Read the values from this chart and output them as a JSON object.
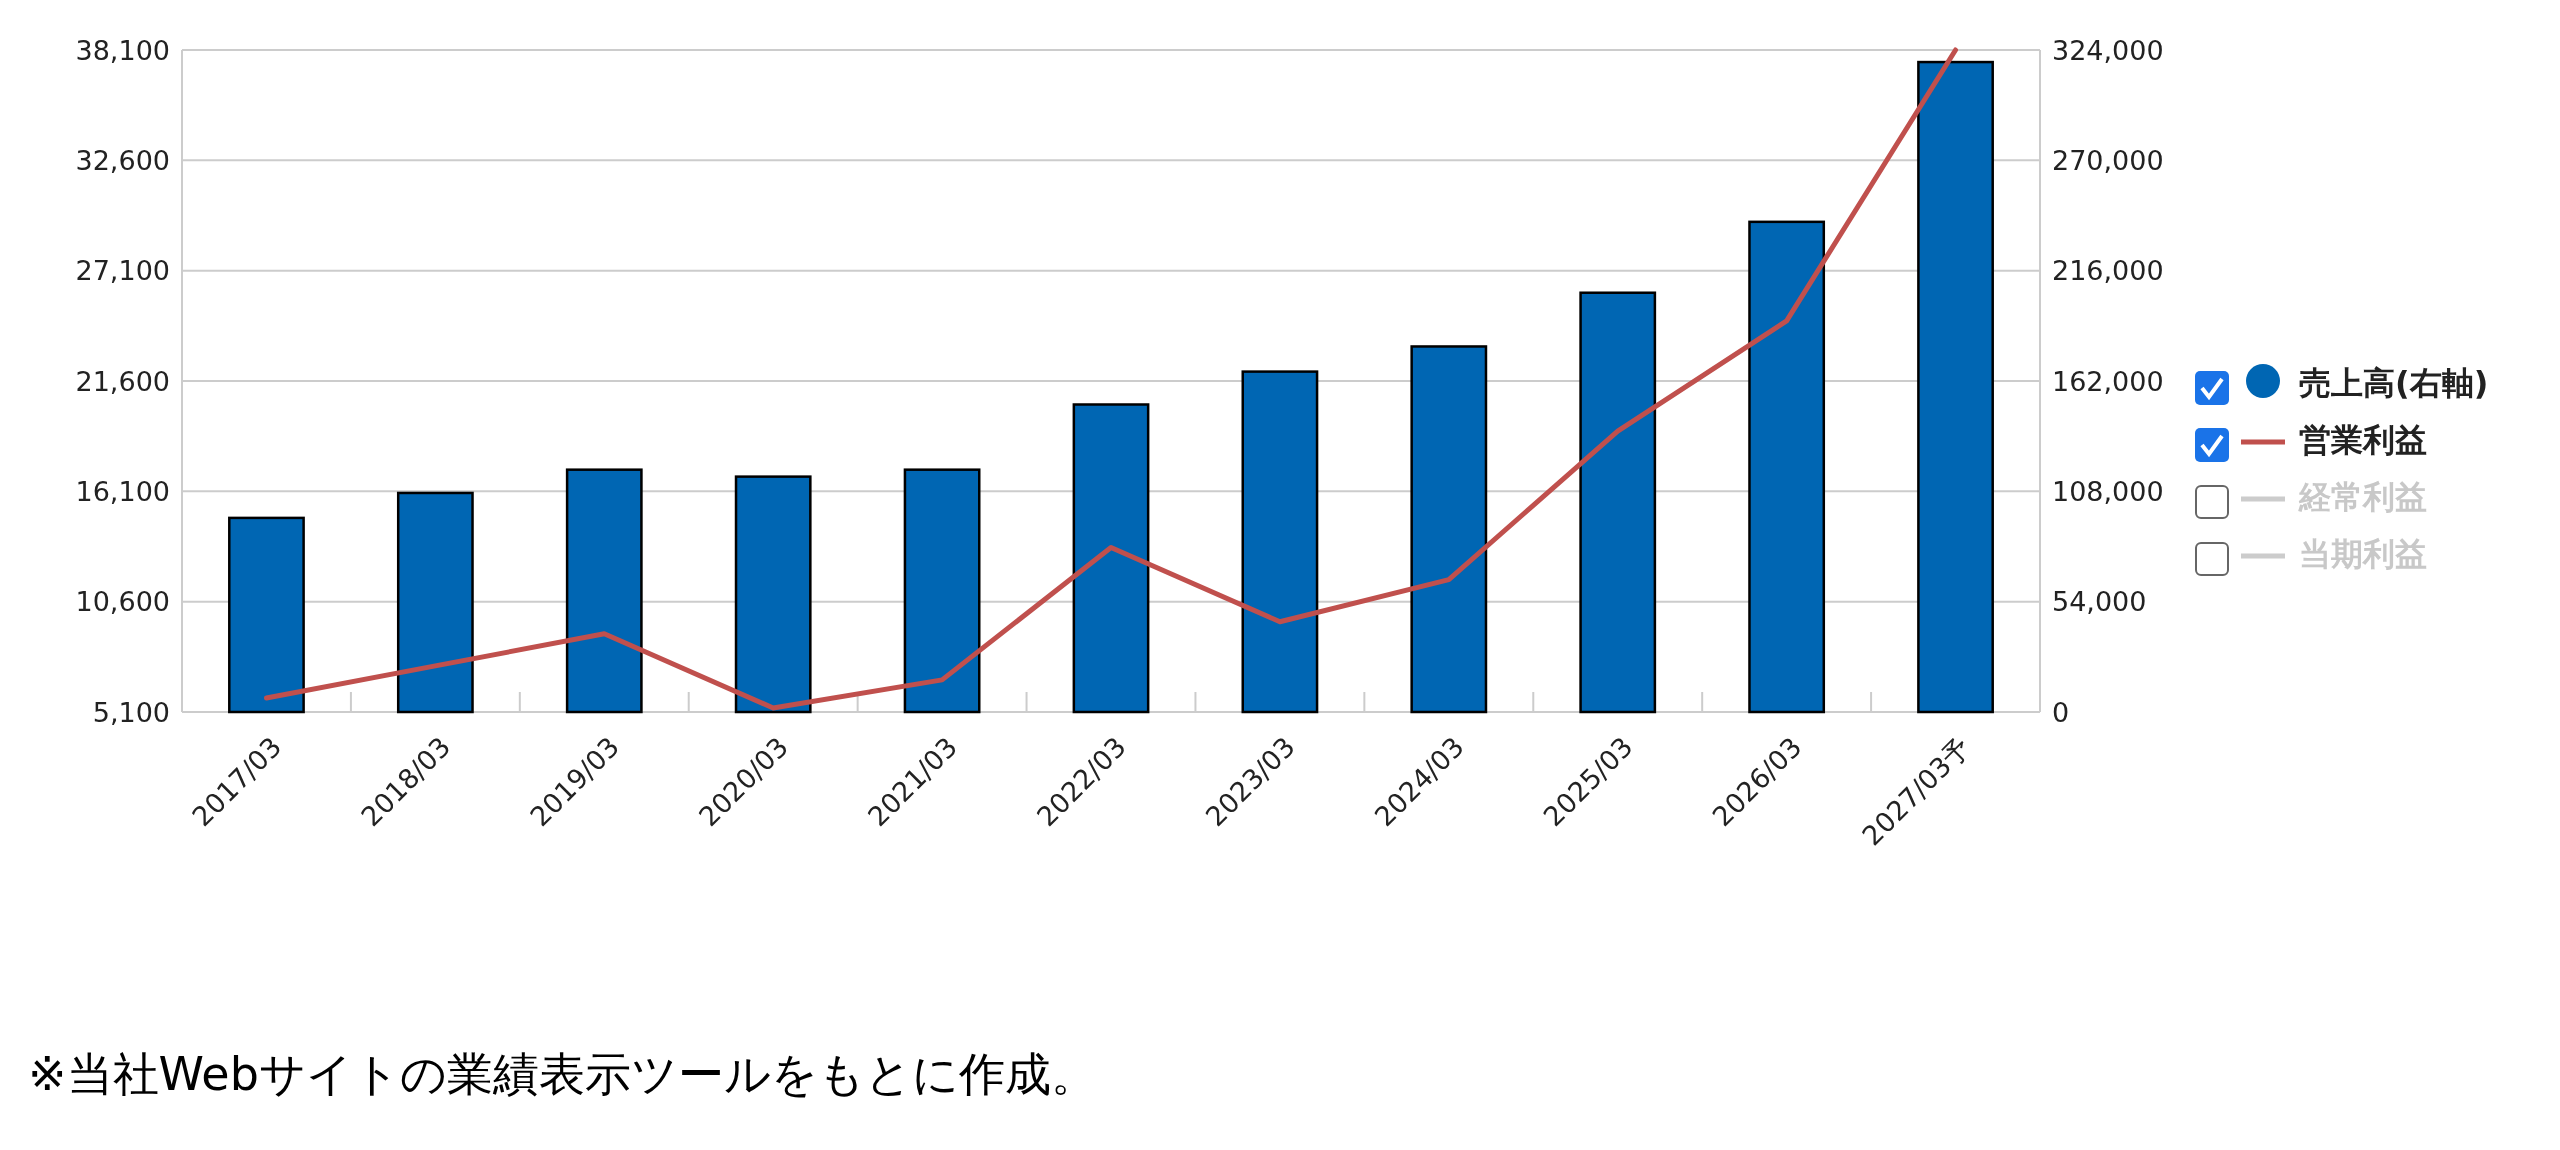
{
  "chart_data": {
    "type": "bar",
    "categories": [
      "2017/03",
      "2018/03",
      "2019/03",
      "2020/03",
      "2021/03",
      "2022/03",
      "2023/03",
      "2024/03",
      "2025/03",
      "2026/03",
      "2027/03予"
    ],
    "series": [
      {
        "name": "売上高(右軸)",
        "axis": "y2",
        "color": "#0066b3",
        "values": [
          95000,
          107200,
          118600,
          115200,
          118600,
          150500,
          166600,
          178900,
          205200,
          239900,
          318100
        ]
      },
      {
        "name": "営業利益",
        "type": "line",
        "color": "#c0504d",
        "values": [
          5800,
          7400,
          9000,
          5300,
          6700,
          13300,
          9600,
          11700,
          19100,
          24600,
          38100
        ]
      },
      {
        "name": "経常利益",
        "type": "line",
        "color": "#cccccc",
        "values": [
          null,
          null,
          null,
          null,
          null,
          null,
          null,
          null,
          null,
          null,
          null
        ]
      },
      {
        "name": "当期利益",
        "type": "line",
        "color": "#cccccc",
        "values": [
          null,
          null,
          null,
          null,
          null,
          null,
          null,
          null,
          null,
          null,
          null
        ]
      }
    ],
    "ylim": [
      5100,
      38100
    ],
    "yticks": [
      {
        "value": 5100,
        "label": "5,100"
      },
      {
        "value": 10600,
        "label": "10,600"
      },
      {
        "value": 16100,
        "label": "16,100"
      },
      {
        "value": 21600,
        "label": "21,600"
      },
      {
        "value": 27100,
        "label": "27,100"
      },
      {
        "value": 32600,
        "label": "32,600"
      },
      {
        "value": 38100,
        "label": "38,100"
      }
    ],
    "y2lim": [
      0,
      324000
    ],
    "y2ticks": [
      0,
      {
        "value": 54000,
        "label": "54,000"
      },
      {
        "value": 108000,
        "label": "108,000"
      },
      {
        "value": 162000,
        "label": "162,000"
      },
      {
        "value": 216000,
        "label": "216,000"
      },
      {
        "value": 270000,
        "label": "270,000"
      },
      {
        "value": 324000,
        "label": "324,000"
      }
    ],
    "grid": "y",
    "legend": "right",
    "annotations": [
      "※当社Webサイトの業績表示ツールをもとに作成。"
    ]
  }
}
